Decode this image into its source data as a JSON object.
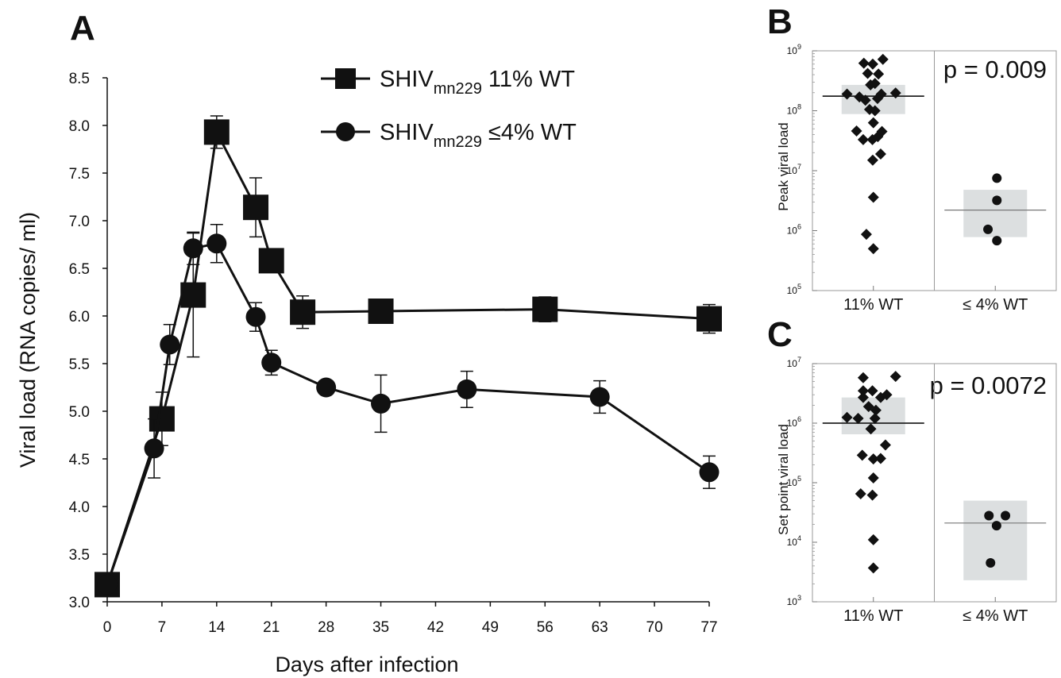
{
  "panels": {
    "A": {
      "letter": "A"
    },
    "B": {
      "letter": "B"
    },
    "C": {
      "letter": "C"
    }
  },
  "chart_data": [
    {
      "id": "A",
      "type": "line",
      "title": "",
      "xlabel": "Days after infection",
      "ylabel": "Viral load (RNA copies/ ml)",
      "xlim": [
        0,
        77
      ],
      "ylim": [
        3.0,
        8.5
      ],
      "xticks": [
        "0",
        "7",
        "14",
        "21",
        "28",
        "35",
        "42",
        "49",
        "56",
        "63",
        "70",
        "77"
      ],
      "yticks": [
        "3.0",
        "3.5",
        "4.0",
        "4.5",
        "5.0",
        "5.5",
        "6.0",
        "6.5",
        "7.0",
        "7.5",
        "8.0",
        "8.5"
      ],
      "legend_position": "top-right",
      "series": [
        {
          "name": "SHIV",
          "name_sub": "mn229",
          "name_suffix": " 11% WT",
          "marker": "square",
          "x": [
            0,
            7,
            11,
            14,
            19,
            21,
            25,
            35,
            56,
            77
          ],
          "y": [
            3.18,
            4.92,
            6.22,
            7.93,
            7.14,
            6.58,
            6.04,
            6.05,
            6.07,
            5.97
          ],
          "err": [
            0,
            0.28,
            0.65,
            0.17,
            0.31,
            0.05,
            0.17,
            0.1,
            0.13,
            0.15
          ]
        },
        {
          "name": "SHIV",
          "name_sub": "mn229",
          "name_suffix": " ≤4% WT",
          "marker": "circle",
          "x": [
            0,
            6,
            8,
            11,
            14,
            19,
            21,
            28,
            35,
            46,
            63,
            77
          ],
          "y": [
            3.18,
            4.61,
            5.7,
            6.71,
            6.76,
            5.99,
            5.51,
            5.25,
            5.08,
            5.23,
            5.15,
            4.36
          ],
          "err": [
            0,
            0.31,
            0.21,
            0.17,
            0.2,
            0.15,
            0.13,
            0.07,
            0.3,
            0.19,
            0.17,
            0.17
          ]
        }
      ]
    },
    {
      "id": "B",
      "type": "scatter",
      "ylabel": "Peak viral load",
      "yscale": "log",
      "ylim": [
        100000,
        1000000000
      ],
      "yticks": [
        {
          "base": "10",
          "exp": "5"
        },
        {
          "base": "10",
          "exp": "6"
        },
        {
          "base": "10",
          "exp": "7"
        },
        {
          "base": "10",
          "exp": "8"
        },
        {
          "base": "10",
          "exp": "9"
        }
      ],
      "categories": [
        "11% WT",
        "≤ 4% WT"
      ],
      "annotation": "p = 0.009",
      "groups": [
        {
          "category": "11% WT",
          "marker": "diamond",
          "median": 175000000,
          "box": [
            88000000,
            270000000
          ],
          "points": [
            {
              "dx": -0.3,
              "y": 620000000
            },
            {
              "dx": -0.02,
              "y": 600000000
            },
            {
              "dx": 0.3,
              "y": 720000000
            },
            {
              "dx": -0.18,
              "y": 420000000
            },
            {
              "dx": 0.16,
              "y": 410000000
            },
            {
              "dx": -0.09,
              "y": 270000000
            },
            {
              "dx": 0.05,
              "y": 285000000
            },
            {
              "dx": -0.83,
              "y": 190000000
            },
            {
              "dx": -0.44,
              "y": 170000000
            },
            {
              "dx": 0.25,
              "y": 190000000
            },
            {
              "dx": 0.7,
              "y": 198000000
            },
            {
              "dx": -0.25,
              "y": 150000000
            },
            {
              "dx": 0.13,
              "y": 160000000
            },
            {
              "dx": -0.12,
              "y": 105000000
            },
            {
              "dx": 0.05,
              "y": 100000000
            },
            {
              "dx": 0.0,
              "y": 63000000
            },
            {
              "dx": -0.53,
              "y": 46000000
            },
            {
              "dx": 0.27,
              "y": 45000000
            },
            {
              "dx": -0.32,
              "y": 33000000
            },
            {
              "dx": -0.03,
              "y": 33000000
            },
            {
              "dx": 0.14,
              "y": 37000000
            },
            {
              "dx": 0.23,
              "y": 19000000
            },
            {
              "dx": -0.02,
              "y": 15000000
            },
            {
              "dx": 0.0,
              "y": 3600000
            },
            {
              "dx": -0.22,
              "y": 870000
            },
            {
              "dx": 0.0,
              "y": 500000
            }
          ]
        },
        {
          "category": "≤ 4% WT",
          "marker": "circle",
          "median": 2200000,
          "box": [
            780000,
            4800000
          ],
          "points": [
            {
              "dx": 0.05,
              "y": 7500000
            },
            {
              "dx": 0.05,
              "y": 3200000
            },
            {
              "dx": -0.23,
              "y": 1050000
            },
            {
              "dx": 0.05,
              "y": 680000
            }
          ]
        }
      ]
    },
    {
      "id": "C",
      "type": "scatter",
      "ylabel": "Set point viral load",
      "yscale": "log",
      "ylim": [
        1000,
        10000000
      ],
      "yticks": [
        {
          "base": "10",
          "exp": "3"
        },
        {
          "base": "10",
          "exp": "4"
        },
        {
          "base": "10",
          "exp": "5"
        },
        {
          "base": "10",
          "exp": "6"
        },
        {
          "base": "10",
          "exp": "7"
        }
      ],
      "categories": [
        "11% WT",
        "≤ 4% WT"
      ],
      "annotation": "p = 0.0072",
      "groups": [
        {
          "category": "11% WT",
          "marker": "diamond",
          "median": 1000000,
          "box": [
            650000,
            2700000
          ],
          "points": [
            {
              "dx": -0.32,
              "y": 5800000
            },
            {
              "dx": 0.7,
              "y": 6100000
            },
            {
              "dx": -0.32,
              "y": 3500000
            },
            {
              "dx": -0.03,
              "y": 3500000
            },
            {
              "dx": -0.32,
              "y": 2700000
            },
            {
              "dx": 0.23,
              "y": 2700000
            },
            {
              "dx": 0.42,
              "y": 3000000
            },
            {
              "dx": -0.15,
              "y": 1900000
            },
            {
              "dx": 0.08,
              "y": 1650000
            },
            {
              "dx": -0.83,
              "y": 1250000
            },
            {
              "dx": -0.48,
              "y": 1200000
            },
            {
              "dx": 0.05,
              "y": 1200000
            },
            {
              "dx": -0.08,
              "y": 800000
            },
            {
              "dx": 0.38,
              "y": 430000
            },
            {
              "dx": -0.35,
              "y": 290000
            },
            {
              "dx": 0.0,
              "y": 250000
            },
            {
              "dx": 0.23,
              "y": 255000
            },
            {
              "dx": 0.0,
              "y": 120000
            },
            {
              "dx": -0.4,
              "y": 65000
            },
            {
              "dx": -0.03,
              "y": 62000
            },
            {
              "dx": 0.0,
              "y": 11000
            },
            {
              "dx": 0.0,
              "y": 3700
            }
          ]
        },
        {
          "category": "≤ 4% WT",
          "marker": "circle",
          "median": 21000,
          "box": [
            2300,
            50000
          ],
          "points": [
            {
              "dx": -0.2,
              "y": 28000
            },
            {
              "dx": 0.32,
              "y": 28000
            },
            {
              "dx": 0.04,
              "y": 19000
            },
            {
              "dx": -0.15,
              "y": 4500
            }
          ]
        }
      ]
    }
  ]
}
